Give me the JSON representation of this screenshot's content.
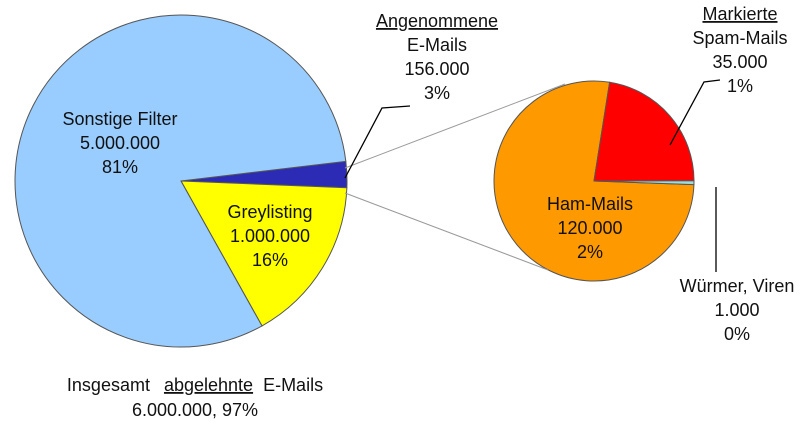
{
  "chart_data": [
    {
      "type": "pie",
      "categories": [
        "Sonstige Filter",
        "Greylisting",
        "Angenommene E-Mails"
      ],
      "values": [
        5000000,
        1000000,
        156000
      ],
      "value_labels": [
        "5.000.000",
        "1.000.000",
        "156.000"
      ],
      "percents": [
        81,
        16,
        3
      ],
      "percent_labels": [
        "81%",
        "16%",
        "3%"
      ],
      "colors": [
        "#99ccff",
        "#ffff00",
        "#2b2bb5"
      ],
      "underlined": [
        false,
        false,
        true
      ]
    },
    {
      "type": "pie",
      "categories": [
        "Markierte Spam-Mails",
        "Würmer, Viren",
        "Ham-Mails"
      ],
      "values": [
        35000,
        1000,
        120000
      ],
      "value_labels": [
        "35.000",
        "1.000",
        "120.000"
      ],
      "percents": [
        1,
        0,
        2
      ],
      "percent_labels": [
        "1%",
        "0%",
        "2%"
      ],
      "colors": [
        "#ff0000",
        "#99dddd",
        "#ff9900"
      ],
      "underlined": [
        true,
        false,
        false
      ]
    }
  ],
  "footer": {
    "prefix": "Insgesamt",
    "emphasis": "abgelehnte",
    "suffix": "E-Mails",
    "total": "6.000.000,  97%"
  }
}
